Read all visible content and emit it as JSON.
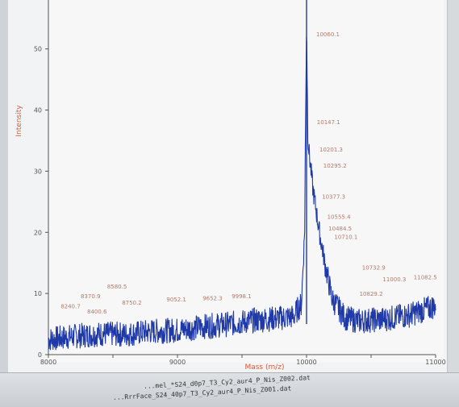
{
  "window": {
    "status_line_1": "...RrrFace_S24_40p7_T3_Cy2_aur4_P_Nis_Z001.dat",
    "status_line_2": "...mel_*S24_d0p7_T3_Cy2_aur4_P_Nis_Z002.dat"
  },
  "chart_data": {
    "type": "line",
    "title": "",
    "xlabel": "Mass (m/z)",
    "ylabel": "Intensity",
    "xlim": [
      8000,
      11000
    ],
    "ylim": [
      0,
      58
    ],
    "x_ticks": [
      "8000",
      "8500",
      "9000",
      "9500",
      "10000",
      "10500",
      "11000"
    ],
    "y_ticks": [
      "0",
      "10",
      "20",
      "30",
      "40",
      "50"
    ],
    "grid": false,
    "series_color": "#1f3aa8",
    "series": [
      {
        "x": [
          8000,
          8200,
          8400,
          8600,
          8800,
          9000,
          9200,
          9400,
          9600,
          9900,
          9930,
          9960,
          9985,
          10000,
          10010,
          10020,
          10050,
          10100,
          10150,
          10200,
          10300,
          10400,
          10600,
          10800,
          11000
        ],
        "y": [
          2.5,
          3.0,
          3.4,
          3.3,
          3.8,
          4.0,
          4.6,
          5.0,
          5.6,
          6.2,
          7.4,
          8.2,
          20,
          55,
          36,
          33,
          27,
          20,
          14,
          9,
          6,
          5.5,
          5.8,
          6.5,
          8.0
        ]
      }
    ],
    "peak_labels": [
      {
        "text": "8240.7",
        "x": 8095,
        "y": 7.6
      },
      {
        "text": "8370.9",
        "x": 8250,
        "y": 9.2
      },
      {
        "text": "8580.5",
        "x": 8455,
        "y": 10.8
      },
      {
        "text": "8400.6",
        "x": 8300,
        "y": 6.7
      },
      {
        "text": "8750.2",
        "x": 8570,
        "y": 8.2
      },
      {
        "text": "9052.1",
        "x": 8915,
        "y": 8.7
      },
      {
        "text": "9652.3",
        "x": 9195,
        "y": 8.9
      },
      {
        "text": "9998.1",
        "x": 9420,
        "y": 9.2
      },
      {
        "text": "10060.1",
        "x": 10075,
        "y": 52.1
      },
      {
        "text": "10147.1",
        "x": 10080,
        "y": 37.7
      },
      {
        "text": "10201.3",
        "x": 10100,
        "y": 33.2
      },
      {
        "text": "10295.2",
        "x": 10130,
        "y": 30.6
      },
      {
        "text": "10377.3",
        "x": 10120,
        "y": 25.5
      },
      {
        "text": "10555.4",
        "x": 10160,
        "y": 22.2
      },
      {
        "text": "10484.5",
        "x": 10170,
        "y": 20.3
      },
      {
        "text": "10710.1",
        "x": 10215,
        "y": 18.9
      },
      {
        "text": "10732.9",
        "x": 10430,
        "y": 13.9
      },
      {
        "text": "11000.3",
        "x": 10590,
        "y": 12.0
      },
      {
        "text": "11082.5",
        "x": 10830,
        "y": 12.3
      },
      {
        "text": "10829.2",
        "x": 10410,
        "y": 9.6
      }
    ]
  }
}
